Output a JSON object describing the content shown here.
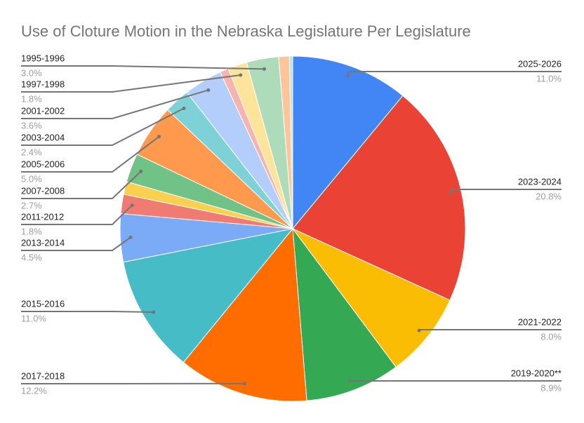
{
  "chart_data": {
    "type": "pie",
    "title": "Use of Cloture Motion in the Nebraska Legislature Per Legislature",
    "categories": [
      "2025-2026",
      "2023-2024",
      "2021-2022",
      "2019-2020**",
      "2017-2018",
      "2015-2016",
      "2013-2014",
      "2011-2012",
      null,
      "2007-2008",
      "2005-2006",
      "2003-2004",
      "2001-2002",
      null,
      "1997-1998",
      "1995-1996",
      null,
      null
    ],
    "values": [
      11.0,
      20.8,
      8.0,
      8.9,
      12.2,
      11.0,
      4.5,
      1.8,
      1.2,
      2.7,
      5.0,
      2.4,
      3.6,
      0.8,
      1.8,
      3.0,
      1.0,
      0.3
    ],
    "value_labels": [
      "11.0%",
      "20.8%",
      "8.0%",
      "8.9%",
      "12.2%",
      "11.0%",
      "4.5%",
      "1.8%",
      null,
      "2.7%",
      "5.0%",
      "2.4%",
      "3.6%",
      null,
      "1.8%",
      "3.0%",
      null,
      null
    ],
    "colors": [
      "#4285f4",
      "#ea4335",
      "#fbbc04",
      "#34a853",
      "#ff6d01",
      "#46bdc6",
      "#7baaf7",
      "#f07b72",
      "#fcd04f",
      "#71c287",
      "#ff994d",
      "#7ed1d7",
      "#b3cefb",
      "#f7b4ae",
      "#fde49b",
      "#aedcba",
      "#ffc599",
      "#b5e5e8"
    ]
  }
}
